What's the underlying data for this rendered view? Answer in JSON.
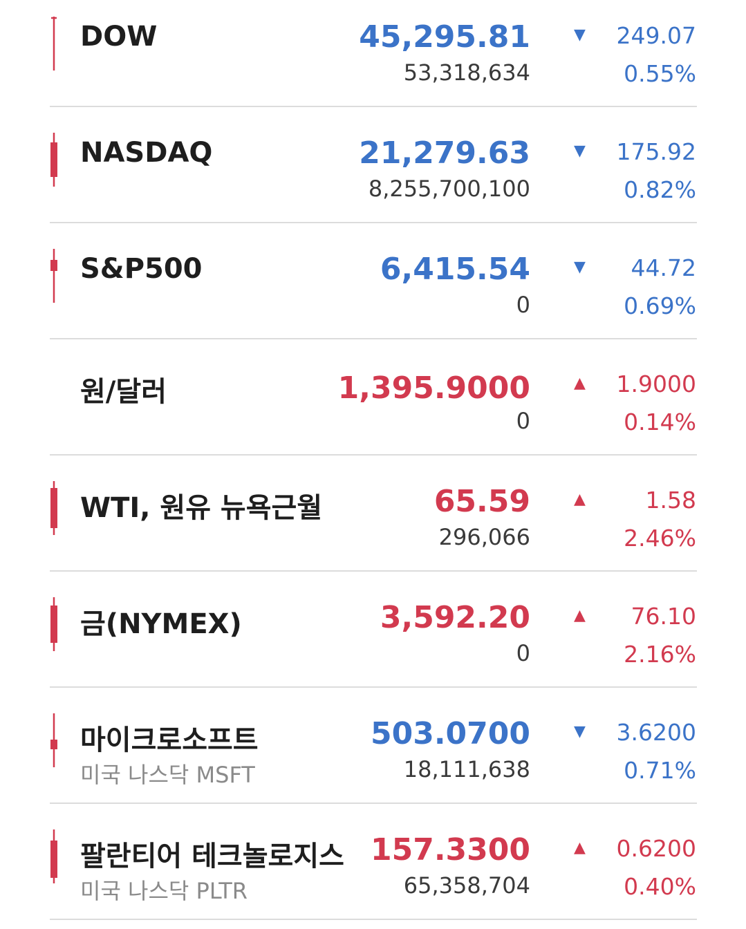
{
  "colors": {
    "down": "#3b73c8",
    "up": "#d23a4f",
    "candle": "#d23a4f"
  },
  "rows": [
    {
      "name": "DOW",
      "price": "45,295.81",
      "volume": "53,318,634",
      "direction": "down",
      "arrow_icon": "triangle-down-icon",
      "arrow": "▼",
      "change": "249.07",
      "pct": "0.55%",
      "candle": "doji"
    },
    {
      "name": "NASDAQ",
      "price": "21,279.63",
      "volume": "8,255,700,100",
      "direction": "down",
      "arrow_icon": "triangle-down-icon",
      "arrow": "▼",
      "change": "175.92",
      "pct": "0.82%",
      "candle": "body"
    },
    {
      "name": "S&P500",
      "price": "6,415.54",
      "volume": "0",
      "direction": "down",
      "arrow_icon": "triangle-down-icon",
      "arrow": "▼",
      "change": "44.72",
      "pct": "0.69%",
      "candle": "small-top"
    },
    {
      "name": "원/달러",
      "price": "1,395.9000",
      "volume": "0",
      "direction": "up",
      "arrow_icon": "triangle-up-icon",
      "arrow": "▲",
      "change": "1.9000",
      "pct": "0.14%",
      "candle": "none"
    },
    {
      "name": "WTI, 원유 뉴욕근월",
      "price": "65.59",
      "volume": "296,066",
      "direction": "up",
      "arrow_icon": "triangle-up-icon",
      "arrow": "▲",
      "change": "1.58",
      "pct": "2.46%",
      "candle": "body"
    },
    {
      "name": "금(NYMEX)",
      "price": "3,592.20",
      "volume": "0",
      "direction": "up",
      "arrow_icon": "triangle-up-icon",
      "arrow": "▲",
      "change": "76.10",
      "pct": "2.16%",
      "candle": "body"
    },
    {
      "name": "마이크로소프트",
      "sub": "미국 나스닥 MSFT",
      "price": "503.0700",
      "volume": "18,111,638",
      "direction": "down",
      "arrow_icon": "triangle-down-icon",
      "arrow": "▼",
      "change": "3.6200",
      "pct": "0.71%",
      "candle": "small-mid"
    },
    {
      "name": "팔란티어 테크놀로지스",
      "sub": "미국 나스닥 PLTR",
      "price": "157.3300",
      "volume": "65,358,704",
      "direction": "up",
      "arrow_icon": "triangle-up-icon",
      "arrow": "▲",
      "change": "0.6200",
      "pct": "0.40%",
      "candle": "body"
    }
  ]
}
